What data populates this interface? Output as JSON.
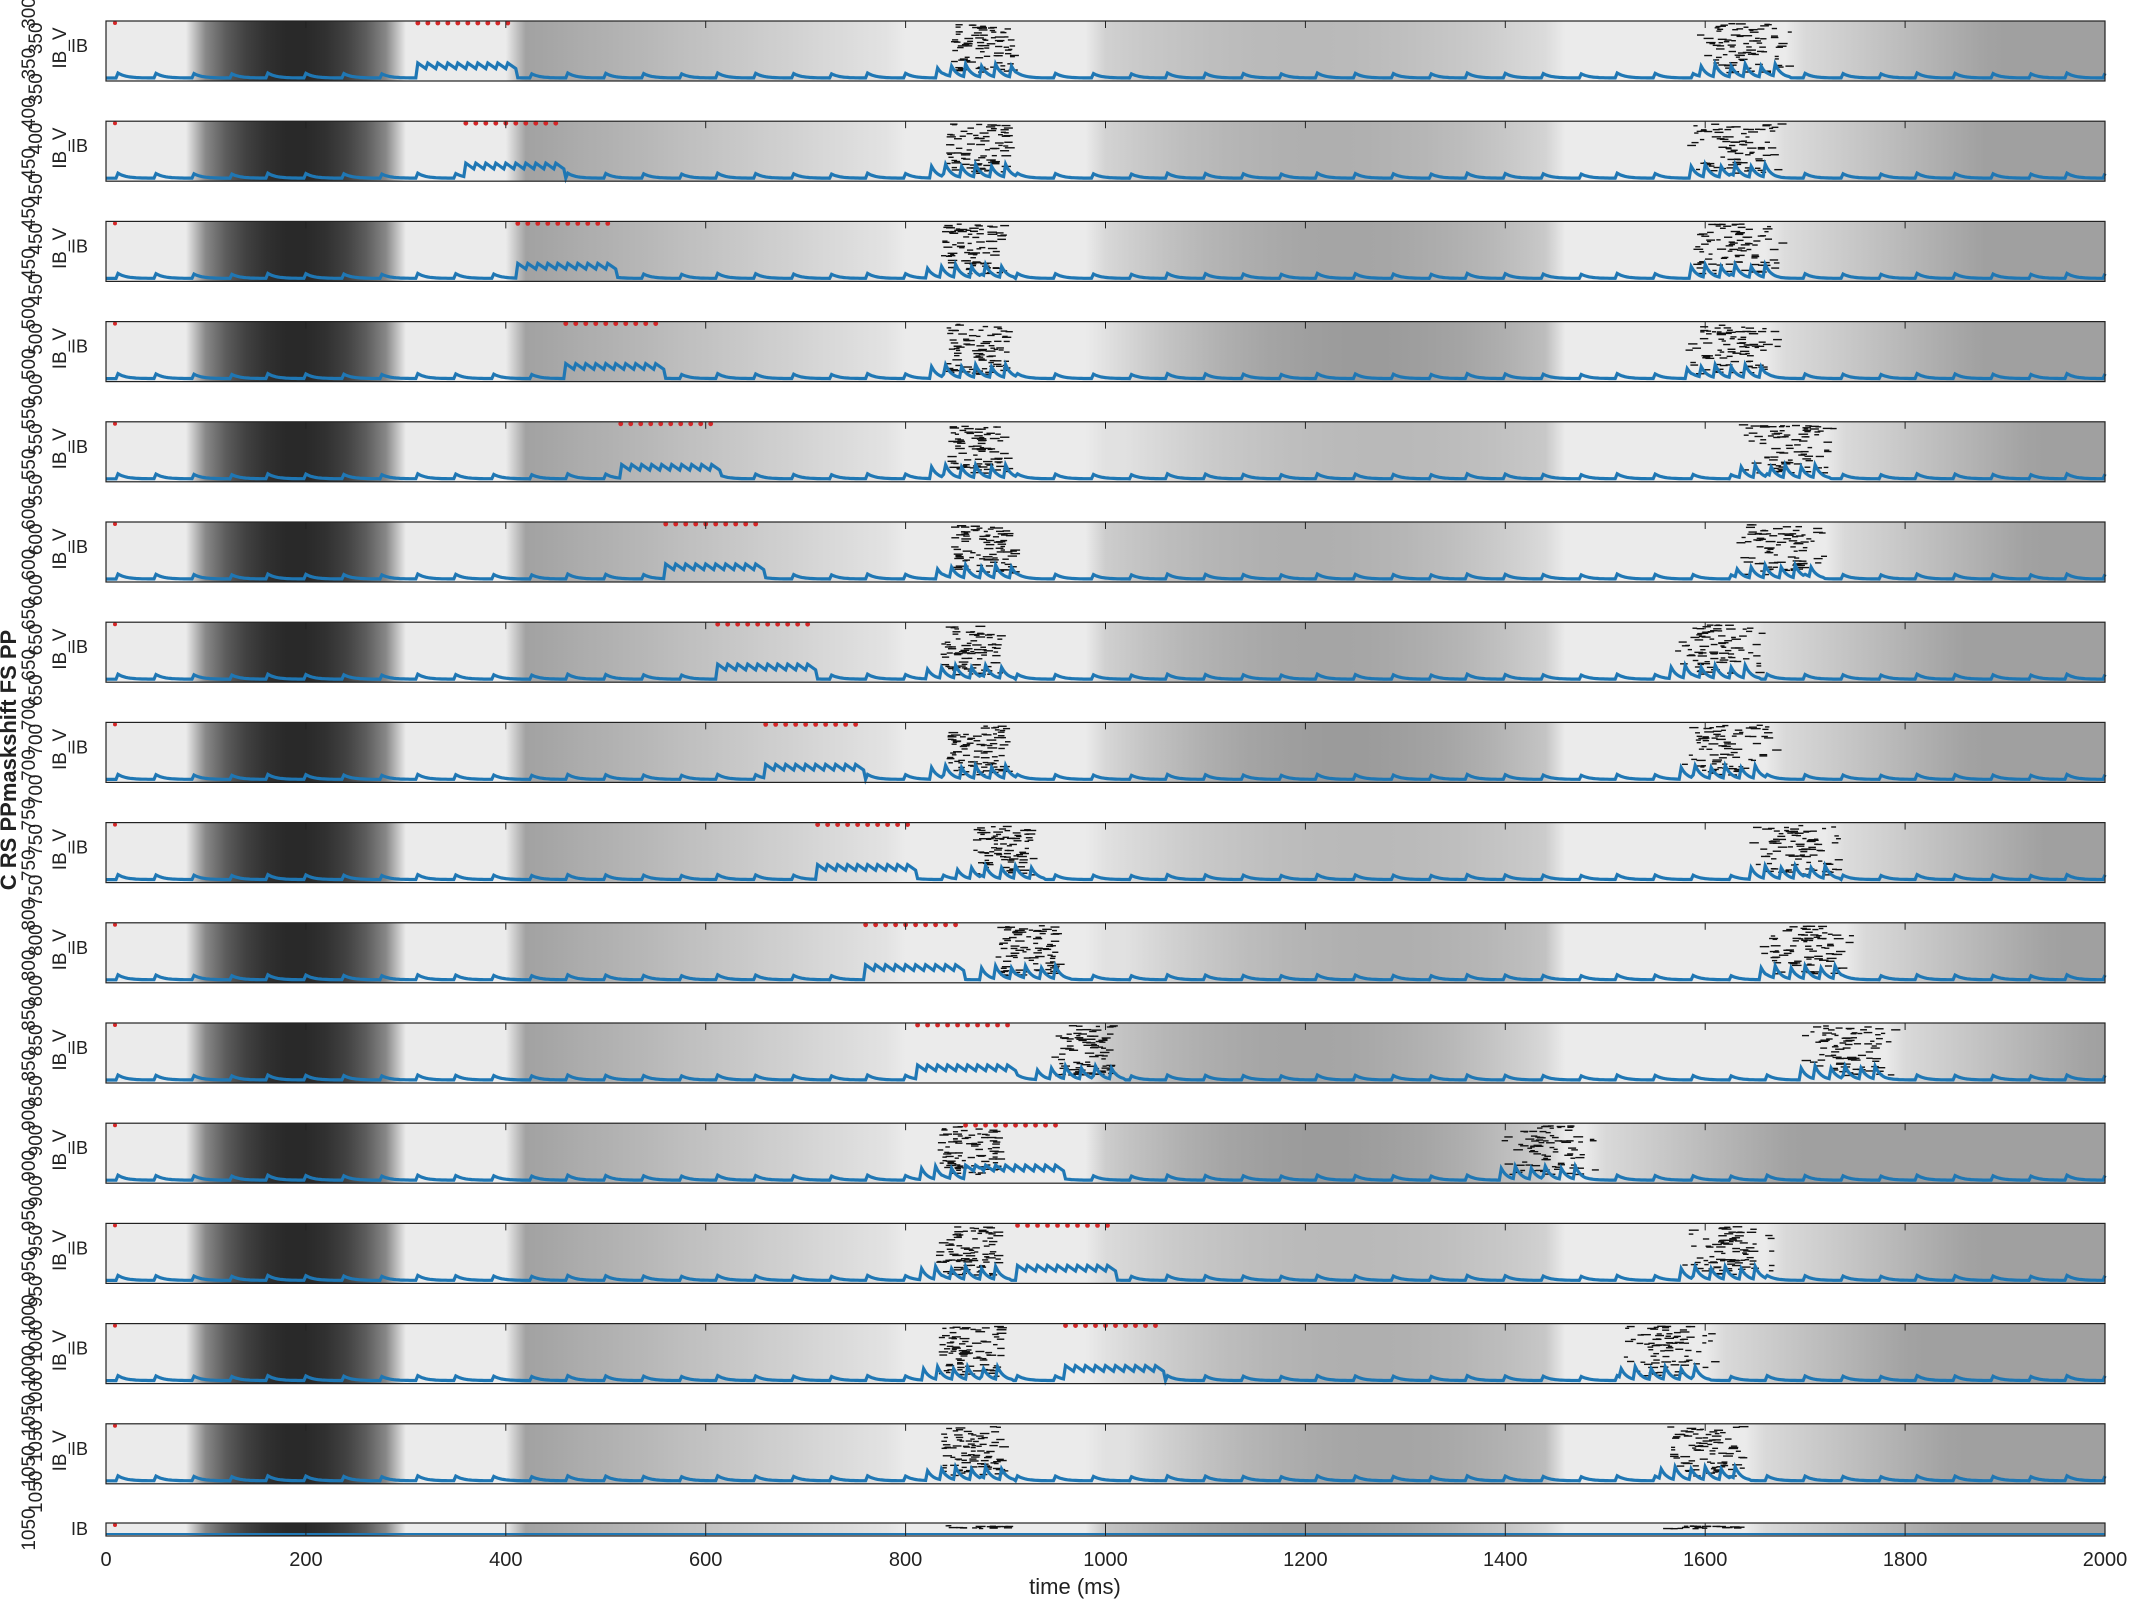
{
  "figure": {
    "ylabel": "C RS PPmaskshift FS PP",
    "xlabel": "time (ms)"
  },
  "chart_data": {
    "type": "raster",
    "xlim": [
      0,
      2000
    ],
    "xticks": [
      0,
      200,
      400,
      600,
      800,
      1000,
      1200,
      1400,
      1600,
      1800,
      2000
    ],
    "xlabel": "time (ms)",
    "ylabel": "C RS PPmaskshift FS PP",
    "colors": {
      "trace": "#1f77b4",
      "marker": "#d62728",
      "raster": "#111111"
    },
    "panel_ylabel": "IB_V",
    "panel_tick": "IB",
    "panels": [
      {
        "tick_labels": [
          "300",
          "350",
          "350",
          "350"
        ],
        "pulse_start": 312,
        "burst1": 875,
        "burst2": 1640
      },
      {
        "tick_labels": [
          "400",
          "400",
          "450",
          "450"
        ],
        "pulse_start": 360,
        "burst1": 870,
        "burst2": 1630
      },
      {
        "tick_labels": [
          "450",
          "450",
          "450",
          "450"
        ],
        "pulse_start": 412,
        "burst1": 865,
        "burst2": 1630
      },
      {
        "tick_labels": [
          "500",
          "500",
          "500",
          "500"
        ],
        "pulse_start": 460,
        "burst1": 870,
        "burst2": 1625
      },
      {
        "tick_labels": [
          "550",
          "550",
          "550",
          "550"
        ],
        "pulse_start": 515,
        "burst1": 870,
        "burst2": 1680
      },
      {
        "tick_labels": [
          "600",
          "600",
          "600",
          "600"
        ],
        "pulse_start": 560,
        "burst1": 875,
        "burst2": 1675
      },
      {
        "tick_labels": [
          "650",
          "650",
          "650",
          "650"
        ],
        "pulse_start": 612,
        "burst1": 865,
        "burst2": 1610
      },
      {
        "tick_labels": [
          "700",
          "700",
          "700",
          "700"
        ],
        "pulse_start": 660,
        "burst1": 870,
        "burst2": 1620
      },
      {
        "tick_labels": [
          "750",
          "750",
          "750",
          "750"
        ],
        "pulse_start": 712,
        "burst1": 895,
        "burst2": 1690
      },
      {
        "tick_labels": [
          "800",
          "800",
          "800",
          "800"
        ],
        "pulse_start": 760,
        "burst1": 920,
        "burst2": 1700
      },
      {
        "tick_labels": [
          "850",
          "850",
          "850",
          "850"
        ],
        "pulse_start": 812,
        "burst1": 975,
        "burst2": 1740
      },
      {
        "tick_labels": [
          "900",
          "900",
          "900",
          "900"
        ],
        "pulse_start": 860,
        "burst1": 860,
        "burst2": 1440
      },
      {
        "tick_labels": [
          "950",
          "950",
          "950",
          "950"
        ],
        "pulse_start": 912,
        "burst1": 860,
        "burst2": 1620
      },
      {
        "tick_labels": [
          "1000",
          "1000",
          "1000",
          "1000"
        ],
        "pulse_start": 960,
        "burst1": 862,
        "burst2": 1560
      },
      {
        "tick_labels": [
          "1050",
          "1050",
          "1050",
          "1050"
        ],
        "pulse_start": 0,
        "burst1": 865,
        "burst2": 1600
      },
      {
        "tick_labels": [
          "1050"
        ],
        "pulse_start": 0,
        "burst1": 870,
        "burst2": 1600
      }
    ]
  }
}
